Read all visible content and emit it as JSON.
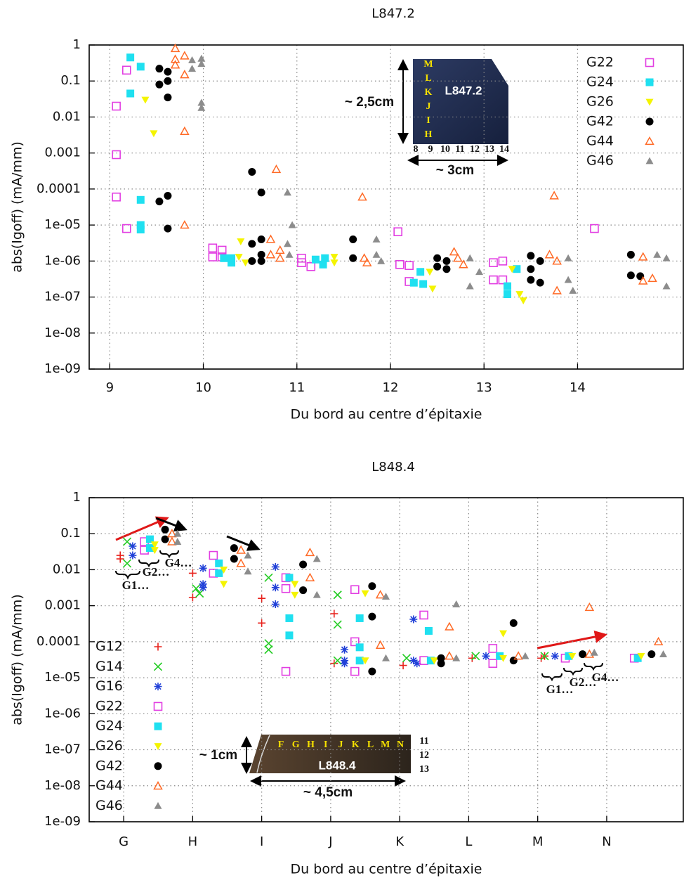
{
  "chart_data": [
    {
      "type": "scatter",
      "title": "L847.2",
      "x_label": "Du bord au centre d’épitaxie",
      "y_label": "abs(Igoff) (mA/mm)",
      "log_y": true,
      "grid": true,
      "legend": "upper right",
      "xlim": [
        8.78,
        15.13
      ],
      "xticks": [
        9,
        10,
        11,
        12,
        13,
        14
      ],
      "ylim": [
        1e-09,
        1
      ],
      "yticks": [
        1,
        0.1,
        0.01,
        0.001,
        0.0001,
        {
          "value": 1e-05,
          "label": "1e-05"
        },
        {
          "value": 1e-06,
          "label": "1e-06"
        },
        {
          "value": 1e-07,
          "label": "1e-07"
        },
        {
          "value": 1e-08,
          "label": "1e-08"
        },
        {
          "value": 1e-09,
          "label": "1e-09"
        }
      ],
      "series": [
        {
          "name": "G22",
          "color": "#e23ee2",
          "marker": "square-open",
          "x": [
            9.07,
            9.07,
            9.07,
            9.18,
            9.18,
            10.1,
            10.1,
            10.2,
            10.2,
            11.05,
            11.05,
            11.15,
            12.08,
            12.1,
            12.2,
            12.2,
            13.1,
            13.1,
            13.2,
            13.2,
            14.18
          ],
          "values": [
            0.02,
            0.0009,
            6e-05,
            0.2,
            8e-06,
            2.3e-06,
            1.3e-06,
            2e-06,
            1.3e-06,
            1.2e-06,
            9e-07,
            7e-07,
            6.5e-06,
            8e-07,
            7.5e-07,
            2.7e-07,
            9e-07,
            3e-07,
            1e-06,
            3e-07,
            8e-06
          ]
        },
        {
          "name": "G24",
          "color": "#1fe0f0",
          "marker": "square",
          "x": [
            9.22,
            9.22,
            9.33,
            9.33,
            9.33,
            9.33,
            10.22,
            10.3,
            10.3,
            11.2,
            11.28,
            11.3,
            12.25,
            12.32,
            12.35,
            13.25,
            13.25,
            13.35
          ],
          "values": [
            0.45,
            0.045,
            0.25,
            5e-05,
            1e-05,
            7.5e-06,
            1.2e-06,
            9e-07,
            1.2e-06,
            1.1e-06,
            8e-07,
            1.2e-06,
            2.5e-07,
            5e-07,
            2.3e-07,
            1.2e-07,
            2e-07,
            6e-07
          ]
        },
        {
          "name": "G26",
          "color": "#f4f400",
          "marker": "triangle-down",
          "x": [
            9.38,
            9.47,
            10.38,
            10.4,
            10.45,
            11.4,
            11.4,
            12.42,
            12.45,
            13.38,
            13.42,
            13.3
          ],
          "values": [
            0.03,
            0.0035,
            1.3e-06,
            3.5e-06,
            9e-07,
            1.3e-06,
            9e-07,
            5e-07,
            1.7e-07,
            1.2e-07,
            8e-08,
            6e-07
          ]
        },
        {
          "name": "G42",
          "color": "#000000",
          "marker": "circle",
          "x": [
            9.53,
            9.53,
            9.53,
            9.62,
            9.62,
            9.62,
            9.62,
            9.62,
            10.52,
            10.52,
            10.52,
            10.62,
            10.62,
            10.62,
            10.62,
            11.6,
            11.6,
            12.5,
            12.5,
            12.6,
            12.6,
            13.5,
            13.5,
            13.5,
            13.6,
            13.6,
            14.57,
            14.57,
            14.67
          ],
          "values": [
            0.22,
            0.08,
            4.5e-05,
            0.18,
            0.1,
            0.035,
            6.5e-05,
            8e-06,
            0.0003,
            3e-06,
            1e-06,
            8e-05,
            4e-06,
            1.5e-06,
            1e-06,
            4e-06,
            1.2e-06,
            1.2e-06,
            7e-07,
            1e-06,
            6e-07,
            1.4e-06,
            6e-07,
            3e-07,
            1e-06,
            2.5e-07,
            1.5e-06,
            4e-07,
            3.8e-07
          ]
        },
        {
          "name": "G44",
          "color": "#ff6a26",
          "marker": "triangle-open",
          "x": [
            9.7,
            9.7,
            9.7,
            9.8,
            9.8,
            9.8,
            9.8,
            10.72,
            10.72,
            10.78,
            10.82,
            10.82,
            11.7,
            11.72,
            11.75,
            12.68,
            12.72,
            12.78,
            13.7,
            13.75,
            13.78,
            13.78,
            14.7,
            14.7,
            14.8
          ],
          "values": [
            0.8,
            0.4,
            0.28,
            0.5,
            0.15,
            0.004,
            1e-05,
            4e-06,
            1.5e-06,
            0.00035,
            2e-06,
            1.2e-06,
            6e-05,
            1.2e-06,
            9e-07,
            1.8e-06,
            1.2e-06,
            8e-07,
            1.5e-06,
            6.5e-05,
            1e-06,
            1.5e-07,
            1.3e-06,
            2.8e-07,
            3.3e-07
          ]
        },
        {
          "name": "G46",
          "color": "#8c8c8c",
          "marker": "triangle",
          "x": [
            9.88,
            9.88,
            9.98,
            9.98,
            9.98,
            9.98,
            10.9,
            10.95,
            10.9,
            10.92,
            11.85,
            11.85,
            11.9,
            12.85,
            12.85,
            12.95,
            13.9,
            13.9,
            13.95,
            14.85,
            14.95,
            14.95
          ],
          "values": [
            0.38,
            0.22,
            0.42,
            0.3,
            0.025,
            0.018,
            8e-05,
            1e-05,
            3e-06,
            1.5e-06,
            4e-06,
            1.5e-06,
            1e-06,
            1.2e-06,
            2e-07,
            5e-07,
            1.2e-06,
            3e-07,
            1.5e-07,
            1.5e-06,
            1.2e-06,
            2e-07
          ]
        }
      ],
      "inset": {
        "name": "L847.2",
        "rows": [
          "M",
          "L",
          "K",
          "J",
          "I",
          "H"
        ],
        "cols": [
          8,
          9,
          10,
          11,
          12,
          13,
          14
        ],
        "height": "~ 2,5cm",
        "width": "~ 3cm"
      }
    },
    {
      "type": "scatter",
      "title": "L848.4",
      "x_label": "Du bord au centre d’épitaxie",
      "y_label": "abs(Igoff) (mA/mm)",
      "log_y": true,
      "grid": true,
      "legend": "lower left",
      "xlim": [
        -0.5,
        8.11
      ],
      "xticks": [
        {
          "value": 0,
          "label": "G"
        },
        {
          "value": 1,
          "label": "H"
        },
        {
          "value": 2,
          "label": "I"
        },
        {
          "value": 3,
          "label": "J"
        },
        {
          "value": 4,
          "label": "K"
        },
        {
          "value": 5,
          "label": "L"
        },
        {
          "value": 6,
          "label": "M"
        },
        {
          "value": 7,
          "label": "N"
        }
      ],
      "ylim": [
        1e-09,
        1
      ],
      "yticks": [
        1,
        0.1,
        0.01,
        0.001,
        0.0001,
        {
          "value": 1e-05,
          "label": "1e-05"
        },
        {
          "value": 1e-06,
          "label": "1e-06"
        },
        {
          "value": 1e-07,
          "label": "1e-07"
        },
        {
          "value": 1e-08,
          "label": "1e-08"
        },
        {
          "value": 1e-09,
          "label": "1e-09"
        }
      ],
      "series": [
        {
          "name": "G12",
          "color": "#e8221c",
          "marker": "plus",
          "x": [
            -0.05,
            -0.05,
            1.0,
            1.0,
            2.0,
            2.0,
            3.05,
            3.05,
            4.05,
            5.05,
            6.05,
            6.1
          ],
          "values": [
            0.02,
            0.025,
            0.008,
            0.0017,
            0.0016,
            0.00033,
            0.0006,
            2.5e-05,
            2.2e-05,
            3.5e-05,
            3.5e-05,
            4e-05
          ]
        },
        {
          "name": "G14",
          "color": "#22cc22",
          "marker": "cross",
          "x": [
            0.05,
            0.05,
            1.05,
            1.1,
            2.1,
            2.1,
            2.1,
            3.1,
            3.1,
            3.1,
            4.1,
            5.1,
            6.1
          ],
          "values": [
            0.06,
            0.015,
            0.003,
            0.0022,
            0.006,
            9e-05,
            6e-05,
            0.002,
            0.0003,
            3e-05,
            3.5e-05,
            4e-05,
            4e-05
          ]
        },
        {
          "name": "G16",
          "color": "#2040d8",
          "marker": "star",
          "x": [
            0.13,
            0.13,
            1.15,
            1.15,
            1.15,
            2.2,
            2.2,
            2.2,
            3.2,
            3.2,
            3.2,
            4.2,
            4.2,
            4.25,
            5.25,
            6.25
          ],
          "values": [
            0.045,
            0.025,
            0.011,
            0.004,
            0.0032,
            0.012,
            0.0032,
            0.0011,
            6e-05,
            3e-05,
            2.5e-05,
            0.00042,
            3e-05,
            2.5e-05,
            4e-05,
            4e-05
          ]
        },
        {
          "name": "G22",
          "color": "#e23ee2",
          "marker": "square-open",
          "x": [
            0.3,
            0.3,
            1.3,
            1.3,
            2.35,
            2.35,
            2.35,
            3.35,
            3.35,
            3.35,
            4.35,
            4.35,
            5.35,
            5.35,
            6.4,
            7.4
          ],
          "values": [
            0.06,
            0.035,
            0.025,
            0.008,
            0.006,
            0.003,
            1.5e-05,
            0.0028,
            0.0001,
            1.5e-05,
            0.00055,
            3e-05,
            6.5e-05,
            2.5e-05,
            3.5e-05,
            3.5e-05
          ]
        },
        {
          "name": "G24",
          "color": "#1fe0f0",
          "marker": "square",
          "x": [
            0.38,
            0.38,
            1.38,
            1.38,
            2.4,
            2.4,
            2.4,
            3.42,
            3.42,
            3.42,
            4.42,
            4.45,
            5.45,
            6.45,
            7.45
          ],
          "values": [
            0.07,
            0.04,
            0.015,
            0.008,
            0.006,
            0.00045,
            0.00015,
            0.00045,
            7e-05,
            3e-05,
            0.0002,
            3e-05,
            4e-05,
            4e-05,
            3.5e-05
          ]
        },
        {
          "name": "G26",
          "color": "#f4f400",
          "marker": "triangle-down",
          "x": [
            0.45,
            0.45,
            1.45,
            1.45,
            2.48,
            2.48,
            3.5,
            3.5,
            4.5,
            5.5,
            5.5,
            6.5,
            7.5
          ],
          "values": [
            0.05,
            0.035,
            0.01,
            0.004,
            0.004,
            0.002,
            0.0022,
            3e-05,
            3e-05,
            0.00017,
            3.5e-05,
            4e-05,
            4e-05
          ]
        },
        {
          "name": "G42",
          "color": "#000000",
          "marker": "circle",
          "x": [
            0.6,
            0.6,
            1.6,
            1.6,
            2.6,
            2.6,
            3.6,
            3.6,
            3.6,
            4.6,
            4.6,
            5.65,
            5.65,
            6.65,
            7.65
          ],
          "values": [
            0.13,
            0.07,
            0.04,
            0.02,
            0.014,
            0.0027,
            0.0035,
            0.0005,
            1.5e-05,
            3.5e-05,
            2.5e-05,
            0.00033,
            3e-05,
            4.5e-05,
            4.5e-05
          ]
        },
        {
          "name": "G44",
          "color": "#ff6a26",
          "marker": "triangle-open",
          "x": [
            0.7,
            0.7,
            1.7,
            1.7,
            2.7,
            2.7,
            3.72,
            3.72,
            4.72,
            4.72,
            5.72,
            6.75,
            6.75,
            7.75
          ],
          "values": [
            0.1,
            0.06,
            0.035,
            0.015,
            0.03,
            0.006,
            0.002,
            8e-05,
            0.00026,
            4e-05,
            4e-05,
            0.0009,
            4.5e-05,
            0.0001
          ]
        },
        {
          "name": "G46",
          "color": "#8c8c8c",
          "marker": "triangle",
          "x": [
            0.78,
            0.78,
            1.8,
            1.8,
            2.8,
            2.8,
            3.8,
            3.8,
            4.82,
            4.82,
            5.82,
            6.82,
            7.82
          ],
          "values": [
            0.1,
            0.06,
            0.025,
            0.009,
            0.02,
            0.002,
            0.0018,
            3.5e-05,
            0.0011,
            3.5e-05,
            4e-05,
            5e-05,
            4.5e-05
          ]
        }
      ],
      "inset": {
        "name": "L848.4",
        "rows": [
          11,
          12,
          13
        ],
        "cols": [
          "F",
          "G",
          "H",
          "I",
          "J",
          "K",
          "L",
          "M",
          "N"
        ],
        "height": "~ 1cm",
        "width": "~ 4,5cm"
      },
      "group_labels": [
        [
          "G1…",
          "G2…",
          "G4…"
        ],
        [
          "G1…",
          "G2…",
          "G4…"
        ]
      ]
    }
  ]
}
